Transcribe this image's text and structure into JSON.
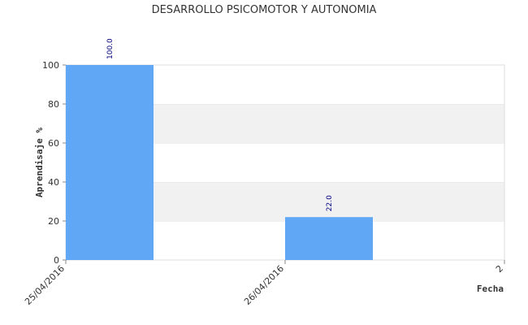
{
  "chart_data": {
    "type": "bar",
    "title": "DESARROLLO PSICOMOTOR Y AUTONOMIA",
    "xlabel": "Fecha",
    "ylabel": "Aprendisaje %",
    "x_tick_labels": [
      "25/04/2016",
      "26/04/2016",
      "2"
    ],
    "categories": [
      "25/04/2016",
      "26/04/2016"
    ],
    "values": [
      100.0,
      22.0
    ],
    "value_labels": [
      "100.0",
      "22.0"
    ],
    "ylim": [
      0,
      100
    ],
    "yticks": [
      0,
      20,
      40,
      60,
      80,
      100
    ],
    "grid": "horizontal alternating bands",
    "colors": {
      "bar": "#60a8f5",
      "band": "#f1f1f1",
      "data_label": "#000080"
    }
  }
}
